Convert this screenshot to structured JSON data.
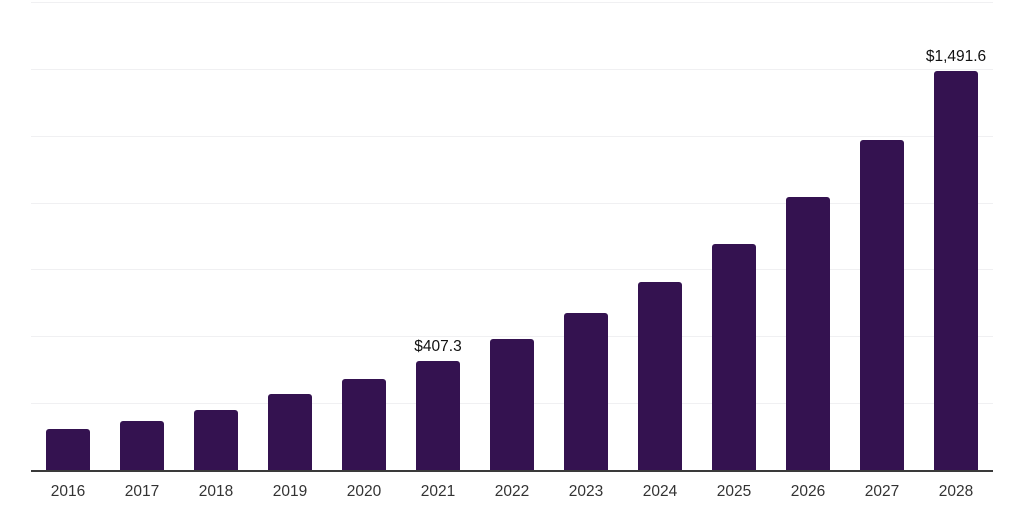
{
  "chart_data": {
    "type": "bar",
    "title": "",
    "xlabel": "",
    "ylabel": "",
    "categories": [
      "2016",
      "2017",
      "2018",
      "2019",
      "2020",
      "2021",
      "2022",
      "2023",
      "2024",
      "2025",
      "2026",
      "2027",
      "2028"
    ],
    "values": [
      153.4,
      183.1,
      225.2,
      284.7,
      339.4,
      407.3,
      488.3,
      587.3,
      702.7,
      845.7,
      1021.8,
      1233.9,
      1491.6
    ],
    "point_labels": {
      "2021": "$407.3",
      "2028": "$1,491.6"
    },
    "ylim": [
      0,
      1750
    ],
    "gridline_interval": 250,
    "grid": true,
    "legend_position": "none",
    "bar_color": "#341250",
    "gridline_color": "#f0f0f2",
    "axis_color": "#3a3a3a",
    "value_label_color": "#111111",
    "tick_label_color": "#333333",
    "background_color": "#ffffff"
  }
}
